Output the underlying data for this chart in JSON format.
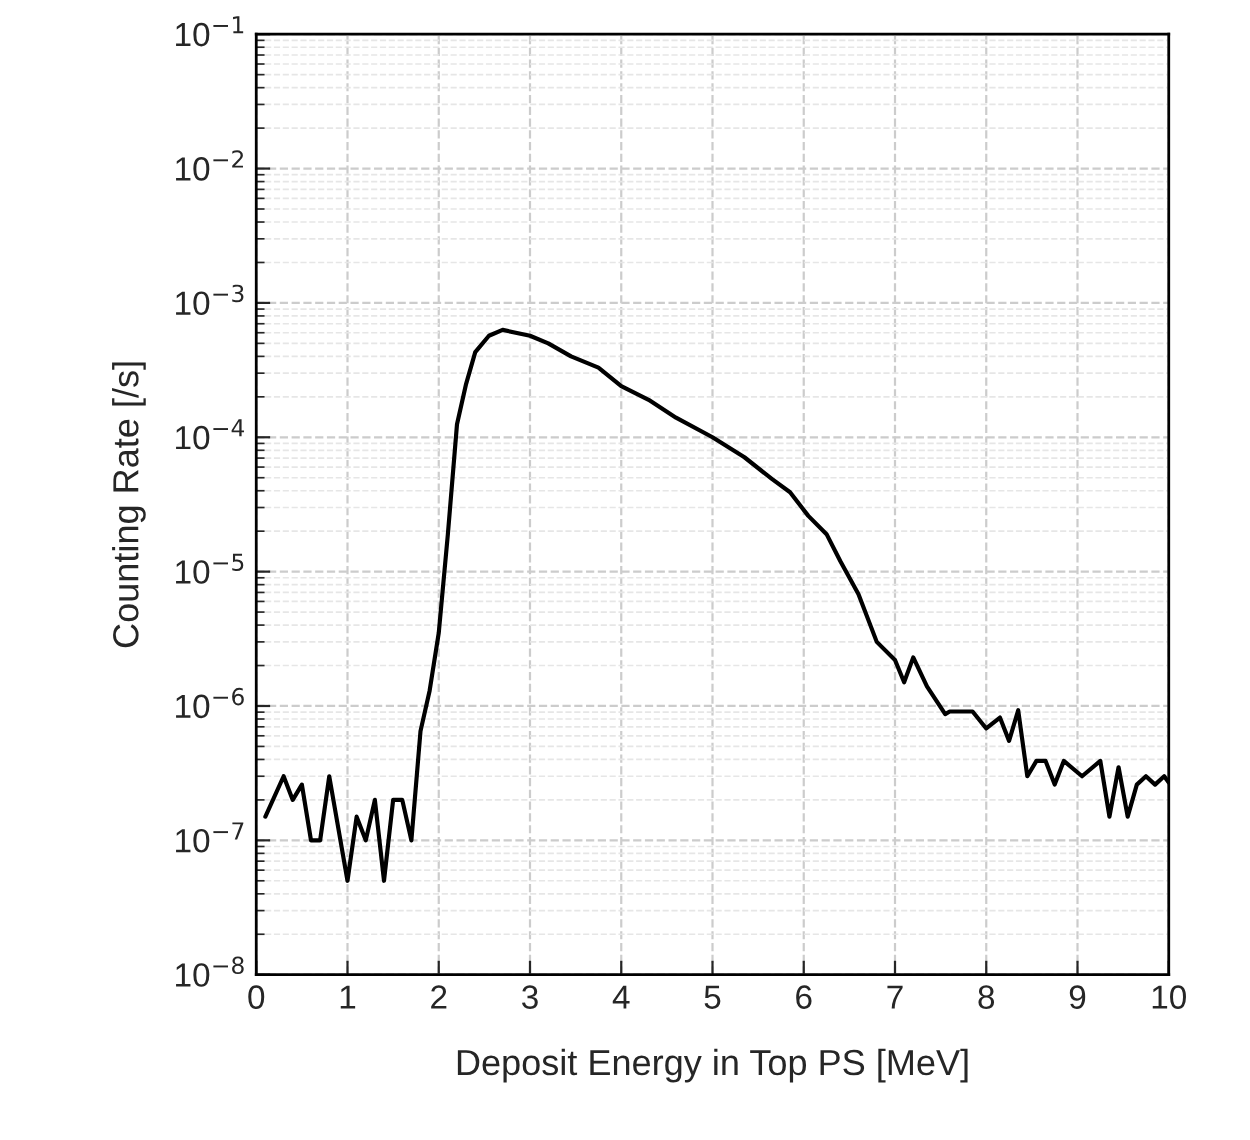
{
  "chart_data": {
    "type": "line",
    "xlabel": "Deposit Energy in Top PS [MeV]",
    "ylabel": "Counting Rate [/s]",
    "log": "y",
    "grid": true,
    "marker": "none",
    "line_style": "solid",
    "xlim": [
      0,
      10
    ],
    "xticks": [
      0,
      1,
      2,
      3,
      4,
      5,
      6,
      7,
      8,
      9,
      10
    ],
    "ylim": [
      1e-08,
      0.1
    ],
    "yticks": [
      {
        "value": 1e-08,
        "label": "10$^{−8}$"
      },
      {
        "value": 1e-07,
        "label": "10$^{−7}$"
      },
      {
        "value": 1e-06,
        "label": "10$^{−6}$"
      },
      {
        "value": 1e-05,
        "label": "10$^{−5}$"
      },
      {
        "value": 0.0001,
        "label": "10$^{−4}$"
      },
      {
        "value": 0.001,
        "label": "10$^{−3}$"
      },
      {
        "value": 0.01,
        "label": "10$^{−2}$"
      },
      {
        "value": 0.1,
        "label": "10$^{−1}$"
      }
    ],
    "series": [
      {
        "color": "#000000",
        "x": [
          0.1,
          0.3,
          0.4,
          0.5,
          0.6,
          0.7,
          0.8,
          1.0,
          1.1,
          1.2,
          1.3,
          1.4,
          1.5,
          1.6,
          1.7,
          1.8,
          1.9,
          2.0,
          2.1,
          2.2,
          2.3,
          2.4,
          2.55,
          2.7,
          3.0,
          3.2,
          3.45,
          3.75,
          4.0,
          4.3,
          4.6,
          5.0,
          5.35,
          5.65,
          5.85,
          6.05,
          6.25,
          6.4,
          6.6,
          6.8,
          7.0,
          7.1,
          7.2,
          7.35,
          7.55,
          7.6,
          7.85,
          8.0,
          8.15,
          8.25,
          8.35,
          8.45,
          8.55,
          8.65,
          8.75,
          8.85,
          9.05,
          9.25,
          9.35,
          9.45,
          9.55,
          9.65,
          9.75,
          9.85,
          9.95,
          10.0
        ],
        "values": [
          1.5e-07,
          3e-07,
          2e-07,
          2.6e-07,
          1e-07,
          1e-07,
          3e-07,
          5e-08,
          1.5e-07,
          1e-07,
          2e-07,
          5e-08,
          2e-07,
          2e-07,
          1e-07,
          6.5e-07,
          1.3e-06,
          3.5e-06,
          1.9e-05,
          0.000125,
          0.00025,
          0.00043,
          0.00057,
          0.00063,
          0.00057,
          0.0005,
          0.0004,
          0.00033,
          0.00024,
          0.00019,
          0.00014,
          0.0001,
          7.1e-05,
          4.9e-05,
          3.9e-05,
          2.6e-05,
          1.9e-05,
          1.2e-05,
          6.8e-06,
          3e-06,
          2.2e-06,
          1.5e-06,
          2.3e-06,
          1.4e-06,
          8.7e-07,
          9.1e-07,
          9.1e-07,
          6.8e-07,
          8.2e-07,
          5.5e-07,
          9.3e-07,
          3e-07,
          3.9e-07,
          3.9e-07,
          2.6e-07,
          3.9e-07,
          3e-07,
          3.9e-07,
          1.5e-07,
          3.5e-07,
          1.5e-07,
          2.6e-07,
          3e-07,
          2.6e-07,
          3e-07,
          2.7e-07
        ]
      }
    ]
  }
}
